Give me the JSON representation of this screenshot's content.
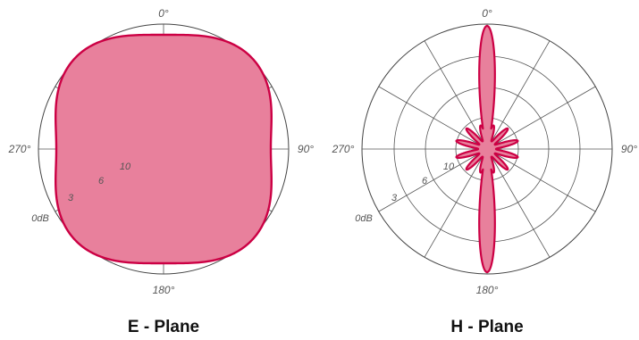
{
  "colors": {
    "pattern_fill": "#e8809c",
    "pattern_stroke": "#cc0044",
    "grid": "#555555"
  },
  "charts": [
    {
      "title": "E - Plane",
      "angle_labels": {
        "top": "0°",
        "right": "90°",
        "bottom": "180°",
        "left": "270°"
      },
      "ring_labels": [
        "0dB",
        "3",
        "6",
        "10"
      ]
    },
    {
      "title": "H - Plane",
      "angle_labels": {
        "top": "0°",
        "right": "90°",
        "bottom": "180°",
        "left": "270°"
      },
      "ring_labels": [
        "0dB",
        "3",
        "6",
        "10"
      ]
    }
  ],
  "chart_data": [
    {
      "type": "polar-radiation-pattern",
      "title": "E - Plane",
      "radial_axis": {
        "rings_dB": [
          0,
          3,
          6,
          10
        ],
        "unit": "dB"
      },
      "angular_axis": {
        "degrees": [
          0,
          90,
          180,
          270
        ]
      },
      "pattern": {
        "angles_deg": [
          0,
          45,
          90,
          135,
          180,
          225,
          270,
          315
        ],
        "relative_level": [
          0.97,
          1.04,
          0.87,
          1.04,
          0.97,
          1.04,
          0.87,
          1.04
        ]
      }
    },
    {
      "type": "polar-radiation-pattern",
      "title": "H - Plane",
      "radial_axis": {
        "rings_dB": [
          0,
          3,
          6,
          10
        ],
        "unit": "dB"
      },
      "angular_axis": {
        "degrees": [
          0,
          90,
          180,
          270
        ]
      },
      "pattern": {
        "main_lobe_angles_deg": [
          0,
          180
        ],
        "side_lobe_count": 12
      }
    }
  ]
}
